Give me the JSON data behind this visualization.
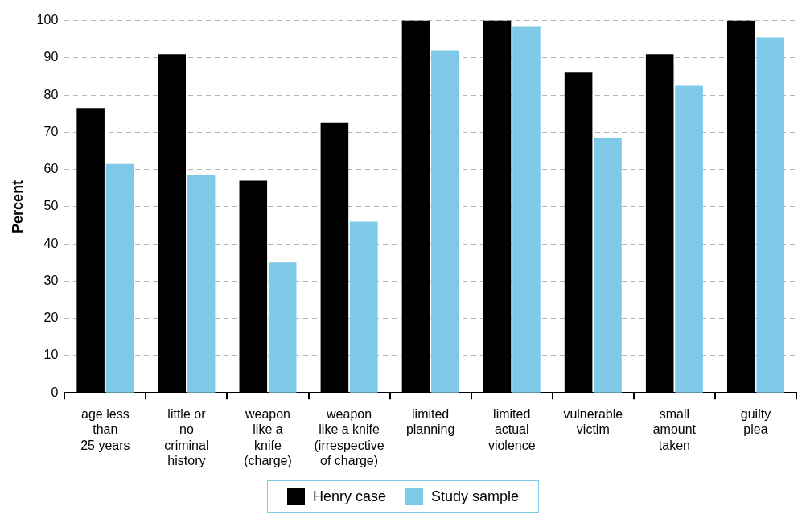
{
  "chart_data": {
    "type": "bar",
    "ylabel": "Percent",
    "categories": [
      "age less\nthan\n25 years",
      "little or\nno\ncriminal\nhistory",
      "weapon\nlike a\nknife\n(charge)",
      "weapon\nlike a knife\n(irrespective\nof charge)",
      "limited\nplanning",
      "limited\nactual\nviolence",
      "vulnerable\nvictim",
      "small\namount\ntaken",
      "guilty\nplea"
    ],
    "series": [
      {
        "name": "Henry case",
        "color": "#000000",
        "values": [
          76.5,
          91,
          57,
          72.5,
          100,
          100,
          86,
          91,
          100
        ]
      },
      {
        "name": "Study sample",
        "color": "#7ec8e8",
        "values": [
          61.5,
          58.5,
          35,
          46,
          92,
          98.5,
          68.5,
          82.5,
          95.5
        ]
      }
    ],
    "ylim": [
      0,
      100
    ],
    "yticks": [
      0,
      10,
      20,
      30,
      40,
      50,
      60,
      70,
      80,
      90,
      100
    ],
    "grid": "y",
    "legend": "bottom"
  }
}
